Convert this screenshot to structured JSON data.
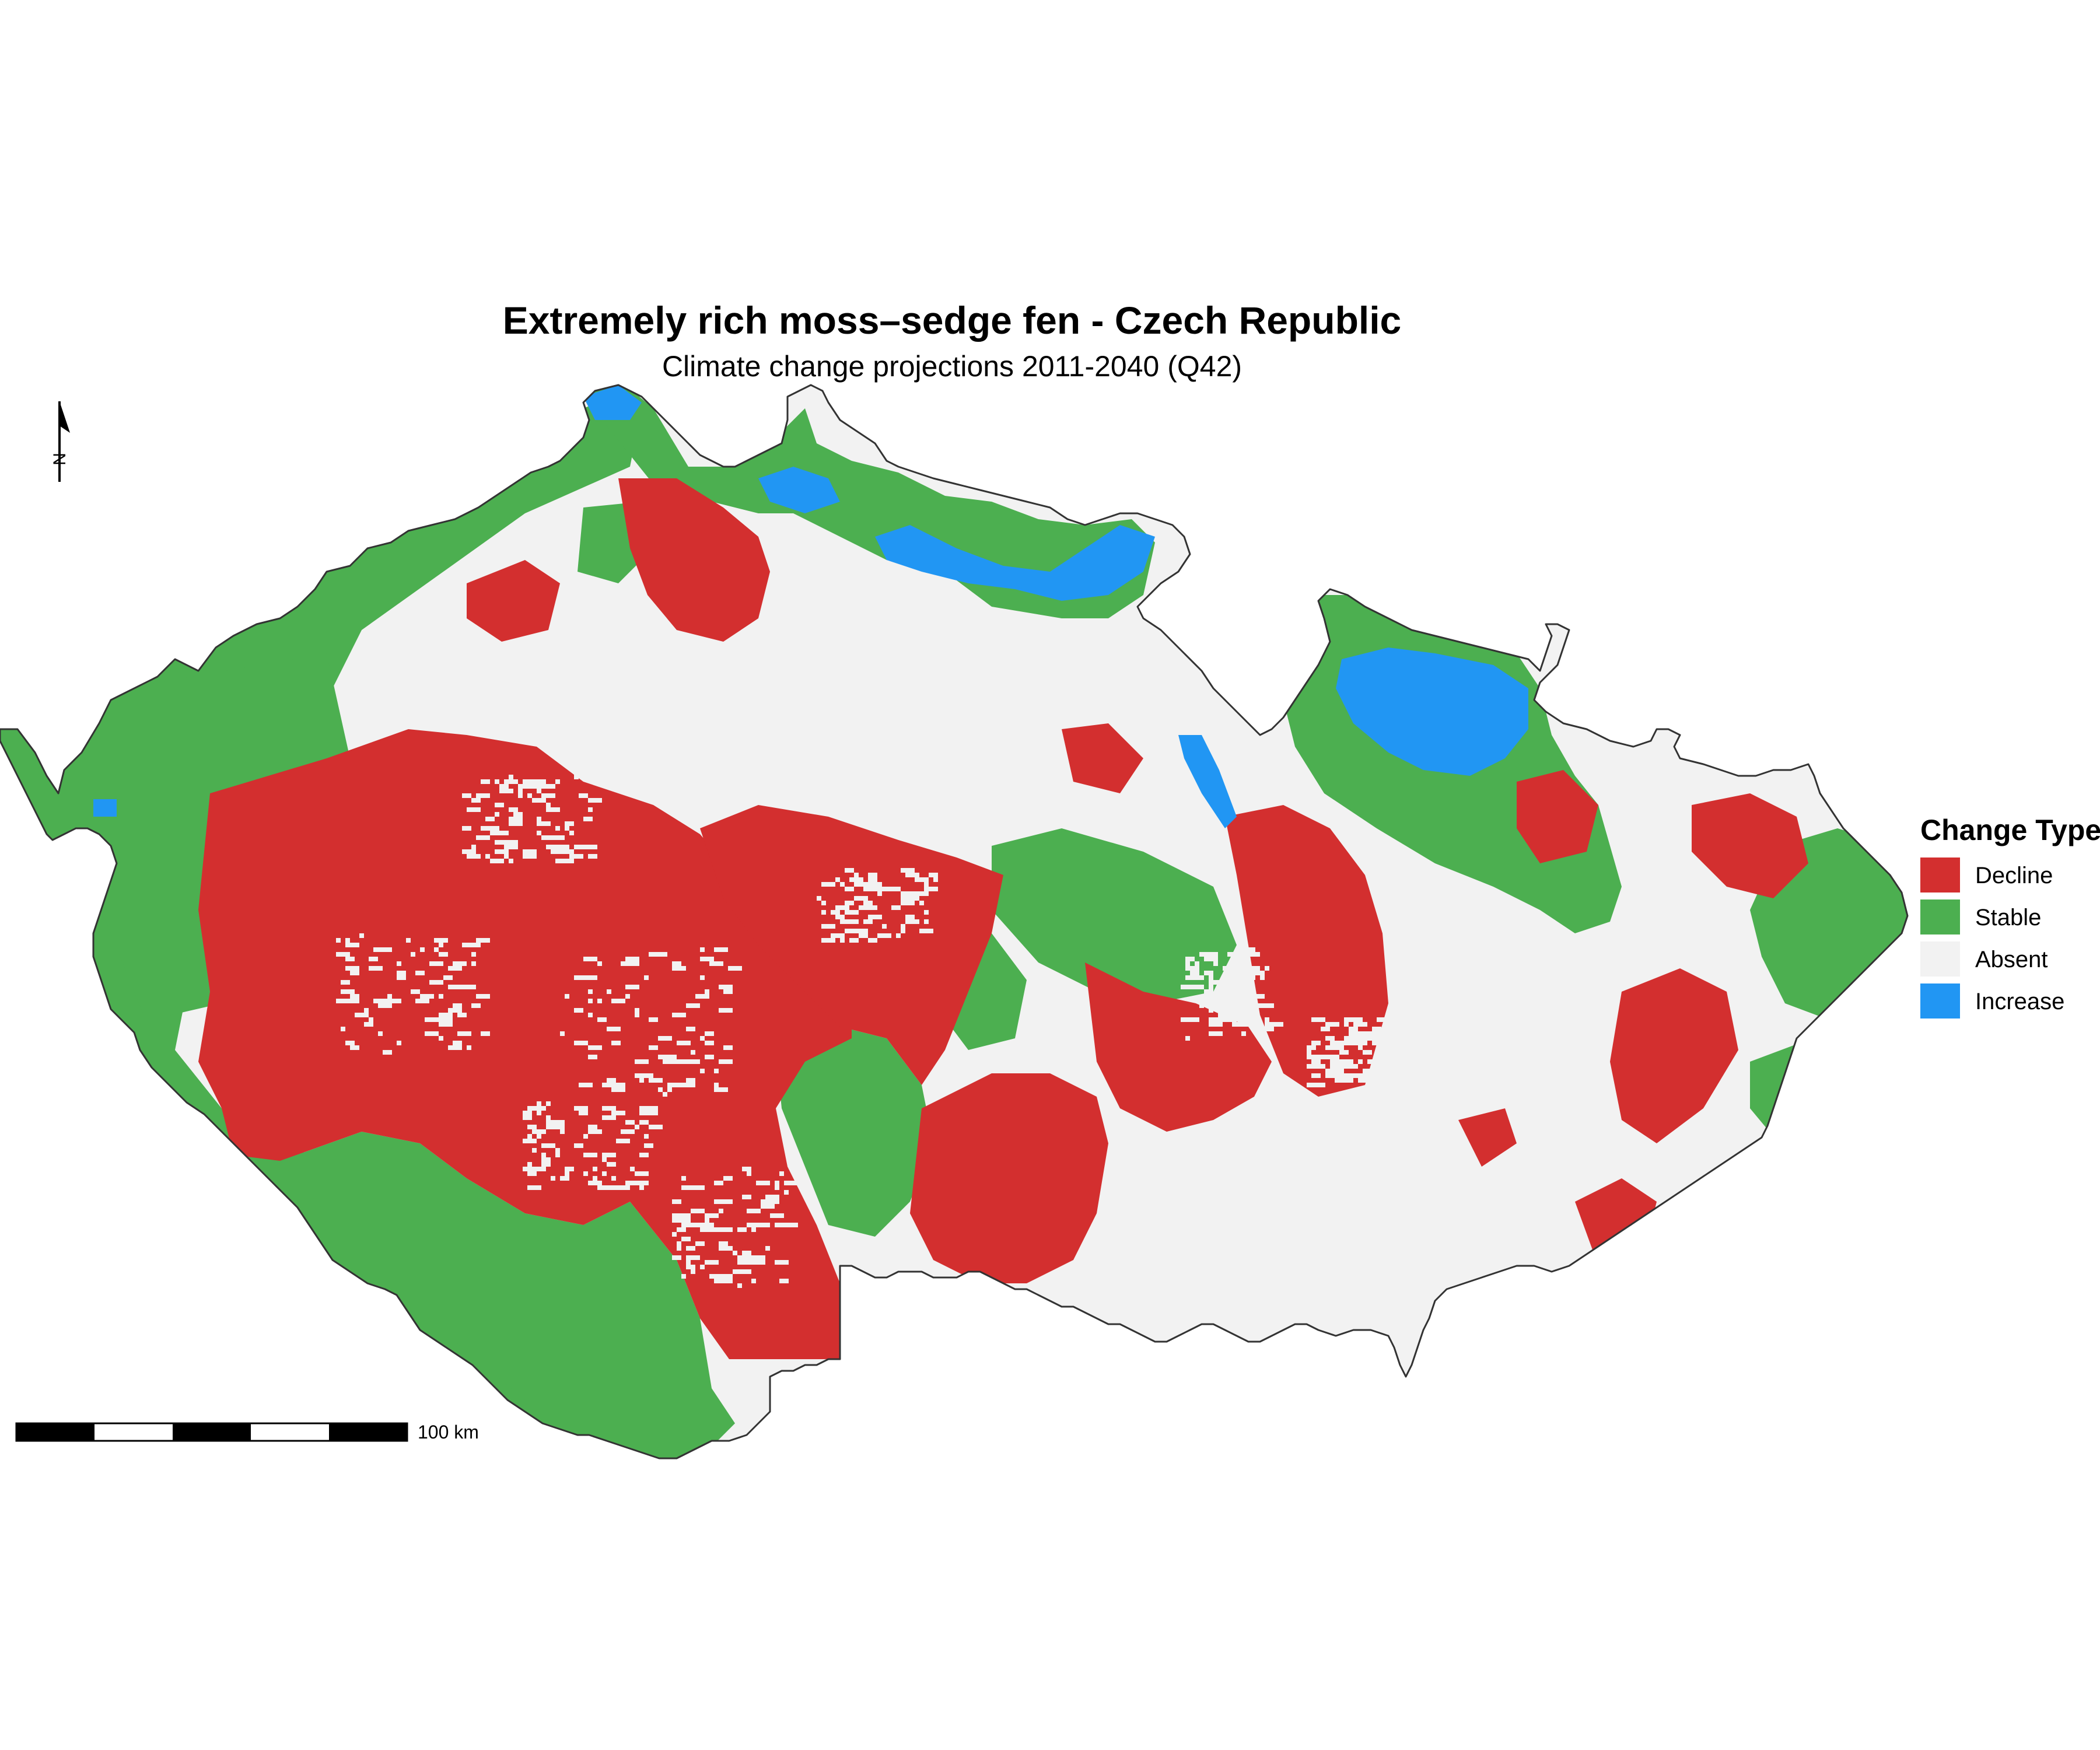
{
  "title": "Extremely rich moss–sedge fen - Czech Republic",
  "subtitle": "Climate change projections 2011-2040 (Q42)",
  "legend": {
    "title": "Change Type",
    "items": [
      {
        "label": "Decline",
        "color": "#D32F2F"
      },
      {
        "label": "Stable",
        "color": "#4CAF50"
      },
      {
        "label": "Absent",
        "color": "#F2F2F2"
      },
      {
        "label": "Increase",
        "color": "#2196F3"
      }
    ]
  },
  "scale_bar": {
    "label": "100 km"
  },
  "north_arrow": {
    "label": "N"
  },
  "colors": {
    "decline": "#D32F2F",
    "stable": "#4CAF50",
    "absent": "#F2F2F2",
    "increase": "#2196F3",
    "border": "#333333"
  }
}
